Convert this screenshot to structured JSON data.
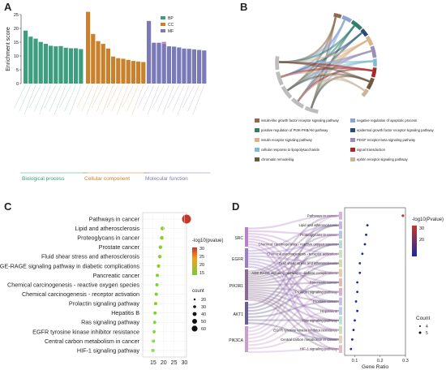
{
  "panels": {
    "a": "A",
    "b": "B",
    "c": "C",
    "d": "D"
  },
  "colors": {
    "BP": "#3c9e7f",
    "CC": "#c8812c",
    "MF": "#7b79b8",
    "dotRed": "#c0392b",
    "dotBlue": "#1a2a9c"
  },
  "chart_data": [
    {
      "type": "bar",
      "ylabel": "Enrichment score",
      "ylim": [
        0,
        25
      ],
      "yticks": [
        0,
        5,
        10,
        15,
        20,
        25
      ],
      "legend": [
        "BP",
        "CC",
        "MF"
      ],
      "group_labels": [
        "Biological process",
        "Cellular component",
        "Molecular function"
      ],
      "series": [
        {
          "name": "BP",
          "values": [
            19.2,
            17.0,
            16.3,
            15.1,
            14.4,
            13.7,
            13.5,
            13.6,
            13.0,
            12.8,
            12.8,
            12.5
          ]
        },
        {
          "name": "CC",
          "values": [
            26.0,
            18.0,
            15.4,
            14.4,
            12.7,
            9.8,
            9.2,
            9.0,
            8.6,
            8.2,
            8.0,
            7.8
          ]
        },
        {
          "name": "MF",
          "values": [
            22.7,
            14.8,
            14.8,
            14.6,
            13.5,
            13.4,
            13.1,
            12.7,
            12.6,
            12.4,
            12.2,
            12.0
          ]
        }
      ]
    },
    {
      "type": "chord",
      "legend": [
        {
          "label": "insulin-like growth factor receptor signaling pathway",
          "color": "#8c6a4f"
        },
        {
          "label": "negative regulation of apoptotic process",
          "color": "#8aa6cf"
        },
        {
          "label": "positive regulation of PI3K-PKB/Akt pathway",
          "color": "#2f7f6b"
        },
        {
          "label": "epidermal growth factor receptor signaling pathway",
          "color": "#2a4b73"
        },
        {
          "label": "insulin receptor signaling pathway",
          "color": "#d9b48b"
        },
        {
          "label": "PDGF receptor-beta signaling pathway",
          "color": "#9a8fb7"
        },
        {
          "label": "cellular response to lipopolysaccharide",
          "color": "#7fbcd3"
        },
        {
          "label": "signal transduction",
          "color": "#a52a2a"
        },
        {
          "label": "chromatin remodeling",
          "color": "#6b5a3f"
        },
        {
          "label": "ephrin receptor signaling pathway",
          "color": "#c9b49a"
        }
      ]
    },
    {
      "type": "scatter",
      "xlim": [
        10,
        31
      ],
      "xticks": [
        15,
        20,
        25,
        30
      ],
      "legend_title": "-log10(pvalue)",
      "legend_values": [
        30,
        25,
        20,
        15
      ],
      "size_title": "count",
      "size_values": [
        20,
        30,
        40,
        50,
        60
      ],
      "categories": [
        "Pathways in cancer",
        "Lipid and atherosclerosis",
        "Proteoglycans in cancer",
        "Prostate cancer",
        "Fluid shear stress and atherosclerosis",
        "AGE-RAGE signaling pathway in diabetic complications",
        "Pancreatic cancer",
        "Chemical carcinogenesis - reactive oxygen species",
        "Chemical carcinogenesis - receptor activation",
        "Prolactin signaling pathway",
        "Hepatitis B",
        "Ras signaling pathway",
        "EGFR tyrosine kinase inhibitor resistance",
        "Central carbon metabolism in cancer",
        "HIF-1 signaling pathway"
      ],
      "x": [
        31,
        19.5,
        19.2,
        18.5,
        18.2,
        17.6,
        17.0,
        16.8,
        16.5,
        16.2,
        15.9,
        15.7,
        15.4,
        15.1,
        14.9
      ],
      "count": [
        60,
        25,
        24,
        22,
        22,
        21,
        20,
        20,
        20,
        20,
        20,
        20,
        20,
        20,
        20
      ]
    },
    {
      "type": "sankey-dot",
      "genes": [
        "SRC",
        "EGFR",
        "PIK3R1",
        "AKT1",
        "PIK3CA"
      ],
      "pathways": [
        "Pathways in cancer",
        "Lipid and atherosclerosis",
        "Proteoglycans in cancer",
        "Chemical carcinogenesis - reactive oxygen species",
        "Chemical carcinogenesis - receptor activation",
        "Fluid shear stress and atherosclerosis",
        "AGE-RAGE signaling pathway in diabetic complications",
        "Pancreatic cancer",
        "Prolactin signaling pathway",
        "Prostate cancer",
        "Hepatitis B",
        "Ras signaling pathway",
        "EGFR tyrosine kinase inhibitor resistance",
        "Central carbon metabolism in cancer",
        "HIF-1 signaling pathway"
      ],
      "gene_ratio": [
        0.29,
        0.15,
        0.145,
        0.14,
        0.13,
        0.12,
        0.12,
        0.11,
        0.11,
        0.105,
        0.11,
        0.1,
        0.095,
        0.09,
        0.085
      ],
      "xlabel": "Gene Ratio",
      "xticks": [
        0.1,
        0.2,
        0.3
      ],
      "xlim": [
        0.06,
        0.3
      ],
      "colorbar_title": "-log10(Pvalue)",
      "colorbar_ticks": [
        30,
        20
      ],
      "size_title": "Count",
      "size_values": [
        4,
        5
      ]
    }
  ]
}
